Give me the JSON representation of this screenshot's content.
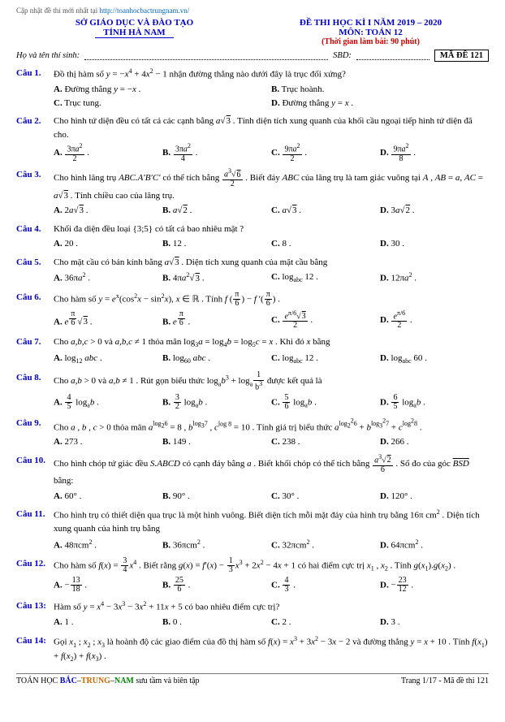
{
  "top_link_prefix": "Cập nhật đề thi mới nhất tại ",
  "top_link_url": "http://toanhocbactrungnam.vn/",
  "header": {
    "org_line1": "SỞ GIÁO DỤC VÀ ĐÀO TẠO",
    "org_line2": "TỈNH HÀ NAM",
    "title_line1": "ĐỀ THI HỌC KÌ I NĂM 2019 – 2020",
    "title_line2": "MÔN: TOÁN 12",
    "time_note": "(Thời gian làm bài: 90 phút)"
  },
  "info": {
    "name_label": "Họ và tên thí sinh:",
    "sbd_label": "SBD:",
    "code_label": "MÃ ĐỀ 121"
  },
  "questions": [
    {
      "label": "Câu 1.",
      "text_html": "Đồ thị hàm số <i>y</i> = −<i>x</i><span class='sup'>4</span> + 4<i>x</i><span class='sup'>2</span> − 1 nhận đường thẳng nào dưới đây là trục đối xứng?",
      "choices_layout": "choice-2",
      "choices": [
        "<b>A.</b> Đường thẳng <i>y</i> = −<i>x</i> .",
        "<b>B.</b> Trục hoành.",
        "<b>C.</b> Trục tung.",
        "<b>D.</b> Đường thẳng <i>y</i> = <i>x</i> ."
      ]
    },
    {
      "label": "Câu 2.",
      "text_html": "Cho hình tứ diện đều có tất cả các cạnh bằng <i>a</i>√<span class='sqrt'>3</span> . Tính diện tích xung quanh của khối cầu ngoại tiếp hình tứ diện đã cho.",
      "choices_layout": "choice-4",
      "choices": [
        "<b>A.</b> <span class='frac'><span class='num'>3π<i>a</i><span class='sup'>2</span></span><span class='den'>2</span></span> .",
        "<b>B.</b> <span class='frac'><span class='num'>3π<i>a</i><span class='sup'>2</span></span><span class='den'>4</span></span> .",
        "<b>C.</b> <span class='frac'><span class='num'>9π<i>a</i><span class='sup'>2</span></span><span class='den'>2</span></span> .",
        "<b>D.</b> <span class='frac'><span class='num'>9π<i>a</i><span class='sup'>2</span></span><span class='den'>8</span></span> ."
      ]
    },
    {
      "label": "Câu 3.",
      "text_html": "Cho hình lăng trụ <i>ABC.A′B′C′</i> có thể tích bằng <span class='frac'><span class='num'><i>a</i><span class='sup'>3</span>√<span class='sqrt'>6</span></span><span class='den'>2</span></span> . Biết đáy <i>ABC</i> của lăng trụ là tam giác vuông tại <i>A</i> , <i>AB</i> = <i>a</i>, <i>AC</i> = <i>a</i>√<span class='sqrt'>3</span> . Tính chiều cao của lăng trụ.",
      "choices_layout": "choice-4",
      "choices": [
        "<b>A.</b> 2<i>a</i>√<span class='sqrt'>3</span> .",
        "<b>B.</b> <i>a</i>√<span class='sqrt'>2</span> .",
        "<b>C.</b> <i>a</i>√<span class='sqrt'>3</span> .",
        "<b>D.</b> 3<i>a</i>√<span class='sqrt'>2</span> ."
      ]
    },
    {
      "label": "Câu 4.",
      "text_html": "Khối đa diện đều loại {3;5} có tất cả bao nhiêu mặt ?",
      "choices_layout": "choice-4",
      "choices": [
        "<b>A.</b> 20 .",
        "<b>B.</b> 12 .",
        "<b>C.</b> 8 .",
        "<b>D.</b> 30 ."
      ]
    },
    {
      "label": "Câu 5.",
      "text_html": "Cho mặt cầu có bán kính bằng <i>a</i>√<span class='sqrt'>3</span> . Diện tích xung quanh của mặt cầu bằng",
      "choices_layout": "choice-4",
      "choices": [
        "<b>A.</b> 36π<i>a</i><span class='sup'>2</span> .",
        "<b>B.</b> 4π<i>a</i><span class='sup'>2</span>√<span class='sqrt'>3</span> .",
        "<b>C.</b> log<span class='sub'>abc</span> 12 .",
        "<b>D.</b> 12π<i>a</i><span class='sup'>2</span> ."
      ]
    },
    {
      "label": "Câu 6.",
      "text_html": "Cho hàm số <i>y</i> = <i>e</i><span class='sup'>x</span>(cos<span class='sup'>2</span><i>x</i> − sin<span class='sup'>2</span><i>x</i>), <i>x</i> ∈ ℝ . Tính <i>f</i> (<span class='frac'><span class='num'>π</span><span class='den'>6</span></span>) − <i>f</i> ′(<span class='frac'><span class='num'>π</span><span class='den'>6</span></span>) .",
      "choices_layout": "choice-4",
      "choices": [
        "<b>A.</b> <i>e</i><span class='sup'><span class='frac'><span class='num'>π</span><span class='den'>6</span></span></span>√<span class='sqrt'>3</span> .",
        "<b>B.</b> <i>e</i><span class='sup'><span class='frac'><span class='num'>π</span><span class='den'>6</span></span></span> .",
        "<b>C.</b> <span class='frac'><span class='num'><i>e</i><span class='sup'>π/6</span>√<span class='sqrt'>3</span></span><span class='den'>2</span></span> .",
        "<b>D.</b> <span class='frac'><span class='num'><i>e</i><span class='sup'>π/6</span></span><span class='den'>2</span></span> ."
      ]
    },
    {
      "label": "Câu 7.",
      "text_html": "Cho <i>a,b,c</i> > 0 và <i>a,b,c</i> ≠ 1 thỏa mãn log<span class='sub'>3</span><i>a</i> = log<span class='sub'>4</span><i>b</i> = log<span class='sub'>5</span><i>c</i> = <i>x</i> . Khi đó <i>x</i> bằng",
      "choices_layout": "choice-4",
      "choices": [
        "<b>A.</b> log<span class='sub'>12</span> <i>abc</i> .",
        "<b>B.</b> log<span class='sub'>60</span> <i>abc</i> .",
        "<b>C.</b> log<span class='sub'>abc</span> 12 .",
        "<b>D.</b> log<span class='sub'>abc</span> 60 ."
      ]
    },
    {
      "label": "Câu 8.",
      "text_html": "Cho <i>a,b</i> > 0 và <i>a,b</i> ≠ 1 . Rút gọn biểu thức log<span class='sub'>a</span><i>b</i><span class='sup'>3</span> + log<span class='sub'>a</span><span class='frac'><span class='num'>1</span><span class='den'>b<span class='sup'>3</span></span></span> được kết quả là",
      "choices_layout": "choice-4",
      "choices": [
        "<b>A.</b> <span class='frac'><span class='num'>4</span><span class='den'>5</span></span> log<span class='sub'>a</span><i>b</i> .",
        "<b>B.</b> <span class='frac'><span class='num'>3</span><span class='den'>2</span></span> log<span class='sub'>a</span><i>b</i> .",
        "<b>C.</b> <span class='frac'><span class='num'>5</span><span class='den'>6</span></span> log<span class='sub'>a</span><i>b</i> .",
        "<b>D.</b> <span class='frac'><span class='num'>6</span><span class='den'>5</span></span> log<span class='sub'>a</span><i>b</i> ."
      ]
    },
    {
      "label": "Câu 9.",
      "text_html": "Cho <i>a</i> , <i>b</i> , <i>c</i> > 0 thỏa mãn <i>a</i><span class='sup'>log<span class='sub'>2</span>6</span> = 8 , <i>b</i><span class='sup'>log<span class='sub'>3</span>7</span> , <i>c</i><span class='sup'>log 8</span> = 10 . Tính giá trị biểu thức <i>a</i><span class='sup'>log<span class='sub'>2</span><span class='sup'>2</span>6</span> + <i>b</i><span class='sup'>log<span class='sub'>3</span><span class='sup'>2</span>7</span> + <i>c</i><span class='sup'>log<span class='sup'>2</span>8</span> .",
      "choices_layout": "choice-4",
      "choices": [
        "<b>A.</b> 273 .",
        "<b>B.</b> 149 .",
        "<b>C.</b> 238 .",
        "<b>D.</b> 266 ."
      ]
    },
    {
      "label": "Câu 10.",
      "text_html": "Cho hình chóp tứ giác đều <i>S.ABCD</i> có cạnh đáy bằng <i>a</i> . Biết khối chóp có thể tích bằng <span class='frac'><span class='num'><i>a</i><span class='sup'>3</span>√<span class='sqrt'>2</span></span><span class='den'>6</span></span> . Số đo của góc <span style='text-decoration:overline;'><i>BSD</i></span> bằng:",
      "choices_layout": "choice-4",
      "choices": [
        "<b>A.</b> 60° .",
        "<b>B.</b> 90° .",
        "<b>C.</b> 30° .",
        "<b>D.</b> 120° ."
      ]
    },
    {
      "label": "Câu 11.",
      "text_html": "Cho hình trụ có thiết diện qua trục là một hình vuông. Biết diện tích mỗi mặt đáy của hình trụ bằng 16π cm<span class='sup'>2</span> . Diện tích xung quanh của hình trụ bằng",
      "choices_layout": "choice-4",
      "choices": [
        "<b>A.</b> 48πcm<span class='sup'>2</span> .",
        "<b>B.</b> 36πcm<span class='sup'>2</span> .",
        "<b>C.</b> 32πcm<span class='sup'>2</span> .",
        "<b>D.</b> 64πcm<span class='sup'>2</span> ."
      ]
    },
    {
      "label": "Câu 12.",
      "text_html": "Cho hàm số <i>f</i>(<i>x</i>) = <span class='frac'><span class='num'>3</span><span class='den'>4</span></span><i>x</i><span class='sup'>4</span> . Biết rằng <i>g</i>(<i>x</i>) = <i>f</i>′(<i>x</i>) − <span class='frac'><span class='num'>1</span><span class='den'>3</span></span><i>x</i><span class='sup'>3</span> + 2<i>x</i><span class='sup'>2</span> − 4<i>x</i> + 1 có hai điểm cực trị <i>x</i><span class='sub'>1</span> , <i>x</i><span class='sub'>2</span> . Tính <i>g</i>(<i>x</i><span class='sub'>1</span>).<i>g</i>(<i>x</i><span class='sub'>2</span>) .",
      "choices_layout": "choice-4",
      "choices": [
        "<b>A.</b> −<span class='frac'><span class='num'>13</span><span class='den'>18</span></span> .",
        "<b>B.</b> <span class='frac'><span class='num'>25</span><span class='den'>6</span></span> .",
        "<b>C.</b> <span class='frac'><span class='num'>4</span><span class='den'>3</span></span> .",
        "<b>D.</b> −<span class='frac'><span class='num'>23</span><span class='den'>12</span></span> ."
      ]
    },
    {
      "label": "Câu 13:",
      "text_html": "Hàm số <i>y</i> = <i>x</i><span class='sup'>4</span> − 3<i>x</i><span class='sup'>3</span> − 3<i>x</i><span class='sup'>2</span> + 11<i>x</i> + 5 có bao nhiêu điểm cực trị?",
      "choices_layout": "choice-4",
      "choices": [
        "<b>A.</b> 1 .",
        "<b>B.</b> 0 .",
        "<b>C.</b> 2 .",
        "<b>D.</b> 3 ."
      ]
    },
    {
      "label": "Câu 14:",
      "text_html": "Gọi <i>x</i><span class='sub'>1</span> ; <i>x</i><span class='sub'>2</span> ; <i>x</i><span class='sub'>3</span> là hoành độ các giao điểm của đồ thị hàm số <i>f</i>(<i>x</i>) = <i>x</i><span class='sup'>3</span> + 3<i>x</i><span class='sup'>2</span> − 3<i>x</i> − 2 và đường thẳng <i>y</i> = <i>x</i> + 10 . Tính <i>f</i>(<i>x</i><span class='sub'>1</span>) + <i>f</i>(<i>x</i><span class='sub'>2</span>) + <i>f</i>(<i>x</i><span class='sub'>3</span>) .",
      "choices_layout": "choice-4",
      "choices": []
    }
  ],
  "footer": {
    "left_prefix": "TOÁN HỌC ",
    "left_bac": "BẮC",
    "left_sep": "–",
    "left_trung": "TRUNG",
    "left_nam": "NAM",
    "left_suffix": " sưu tầm và biên tập",
    "right": "Trang 1/17 - Mã đề thi 121"
  }
}
